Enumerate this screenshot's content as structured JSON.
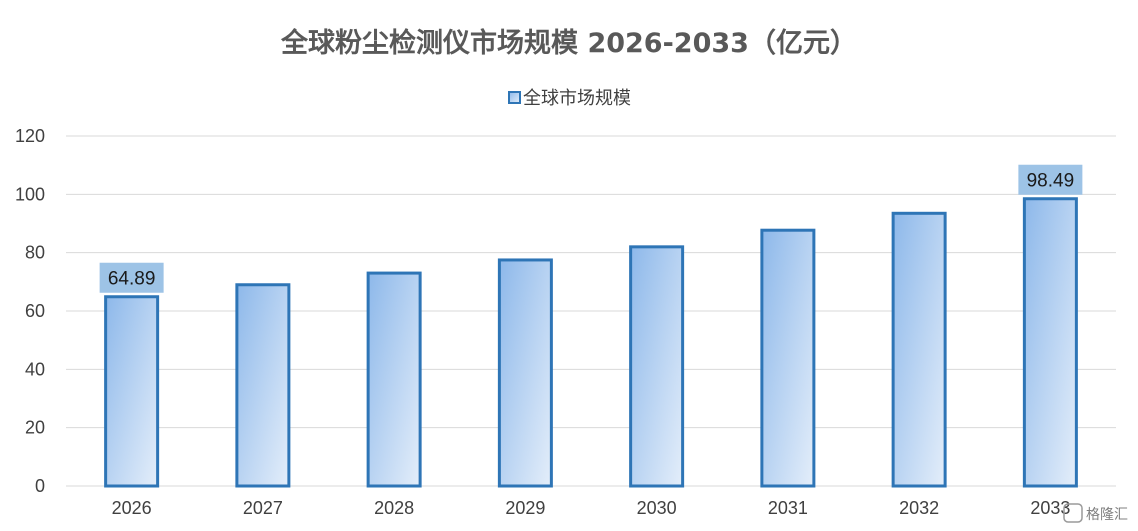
{
  "chart_data": {
    "type": "bar",
    "title": "全球粉尘检测仪市场规模 2026-2033（亿元）",
    "categories": [
      "2026",
      "2027",
      "2028",
      "2029",
      "2030",
      "2031",
      "2032",
      "2033"
    ],
    "series": [
      {
        "name": "全球市场规模",
        "values": [
          64.89,
          69.0,
          73.0,
          77.5,
          82.0,
          87.7,
          93.5,
          98.49
        ]
      }
    ],
    "data_labels": [
      {
        "category": "2026",
        "text": "64.89"
      },
      {
        "category": "2033",
        "text": "98.49"
      }
    ],
    "ylim": [
      0,
      120
    ],
    "yticks": [
      "0",
      "20",
      "40",
      "60",
      "80",
      "100",
      "120"
    ],
    "grid": true,
    "legend_position": "top",
    "colors": {
      "bar_border": "#2e75b6",
      "bar_fill_top": "#8db8ea",
      "bar_fill_bottom": "#e4eefa",
      "label_bg": "#9dc3e6"
    }
  },
  "watermark": {
    "text": "格隆汇"
  }
}
